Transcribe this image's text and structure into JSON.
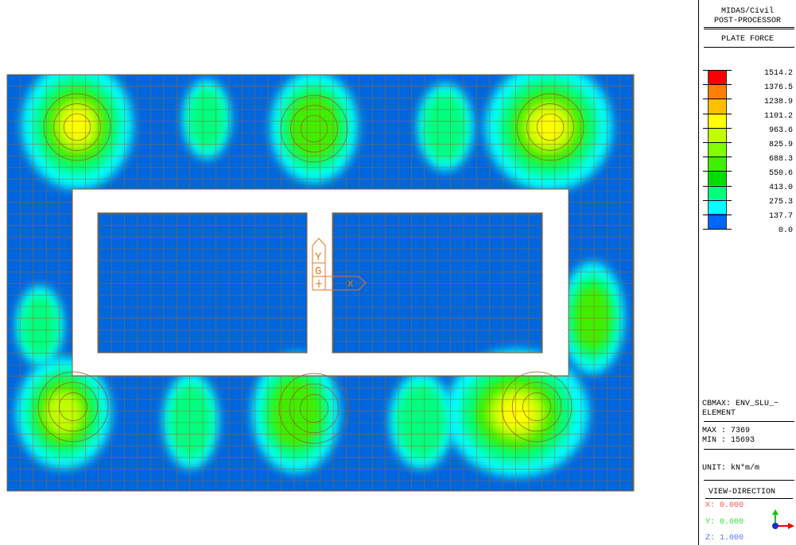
{
  "legend": {
    "program": "MIDAS/Civil",
    "processor": "POST-PROCESSOR",
    "result_type": "PLATE FORCE",
    "scale": [
      {
        "value": "1514.2",
        "color": "#ff0000"
      },
      {
        "value": "1376.5",
        "color": "#ff7f00"
      },
      {
        "value": "1238.9",
        "color": "#ffbf00"
      },
      {
        "value": "1101.2",
        "color": "#ffff00"
      },
      {
        "value": "963.6",
        "color": "#bfff00"
      },
      {
        "value": "825.9",
        "color": "#7fff00"
      },
      {
        "value": "688.3",
        "color": "#40ee00"
      },
      {
        "value": "550.6",
        "color": "#00dd00"
      },
      {
        "value": "413.0",
        "color": "#00ff7f"
      },
      {
        "value": "275.3",
        "color": "#00ffff"
      },
      {
        "value": "137.7",
        "color": "#0066ff"
      },
      {
        "value": "0.0",
        "color": ""
      }
    ],
    "cbmax": "CBMAX: ENV_SLU_~",
    "element": "ELEMENT",
    "max": "MAX : 7369",
    "min": "MIN : 15693",
    "unit": "UNIT: kN*m/m",
    "view_direction": "VIEW-DIRECTION",
    "view_x": "X: 0.000",
    "view_y": "Y: 0.000",
    "view_z": "Z: 1.000"
  },
  "axis_marker": {
    "y_label": "Y",
    "g_label": "G",
    "x_label": "X"
  },
  "colors": {
    "background_contour": "#0066dd",
    "low": "#00ffff",
    "mid_low": "#00ff7f",
    "mid": "#40ee00",
    "high": "#bfff00",
    "peak": "#ffff00",
    "mesh_line": "#a06a2a",
    "axis_marker": "#e07a20"
  }
}
